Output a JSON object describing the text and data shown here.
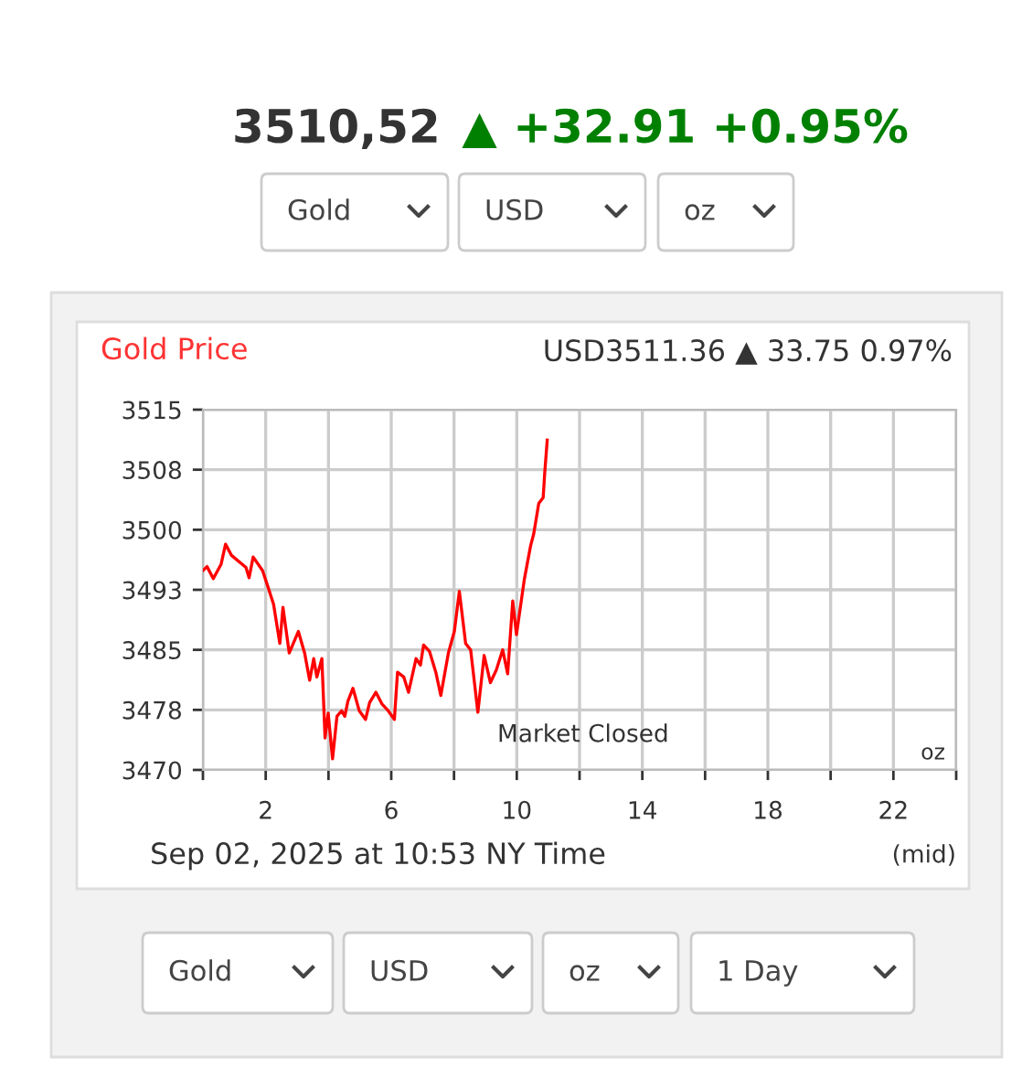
{
  "chart_data": {
    "type": "line",
    "title": "Gold Price",
    "subtitle": "USD3511.36 ▲ 33.75 0.97%",
    "annotations": [
      "3510,52",
      "▲ +32.91 +0.95%",
      "Gold",
      "USD",
      "oz",
      "Market Closed",
      "oz",
      "Sep 02, 2025 at 10:53 NY Time",
      "(mid)",
      "Gold",
      "USD",
      "oz",
      "1 Day"
    ],
    "x": [
      0.0,
      0.13,
      0.33,
      0.58,
      0.72,
      0.91,
      1.37,
      1.47,
      1.6,
      1.9,
      2.06,
      2.25,
      2.45,
      2.55,
      2.75,
      3.04,
      3.24,
      3.4,
      3.53,
      3.63,
      3.79,
      3.89,
      3.99,
      4.13,
      4.27,
      4.42,
      4.52,
      4.62,
      4.78,
      4.98,
      5.18,
      5.31,
      5.51,
      5.71,
      5.9,
      6.1,
      6.2,
      6.4,
      6.55,
      6.79,
      6.93,
      7.03,
      7.22,
      7.42,
      7.58,
      7.82,
      8.01,
      8.17,
      8.37,
      8.53,
      8.76,
      8.96,
      9.16,
      9.35,
      9.55,
      9.71,
      9.87,
      9.99,
      10.24,
      10.44,
      10.54,
      10.7,
      10.84,
      10.89,
      10.97
    ],
    "series": [
      {
        "color": "#ff0000",
        "values": [
          3494.9,
          3495.4,
          3493.9,
          3495.7,
          3498.2,
          3496.8,
          3495.3,
          3494.0,
          3496.6,
          3494.9,
          3493.0,
          3490.7,
          3485.8,
          3490.3,
          3484.6,
          3487.3,
          3484.6,
          3481.2,
          3483.9,
          3481.6,
          3483.9,
          3474.0,
          3477.1,
          3471.4,
          3476.7,
          3477.4,
          3476.7,
          3478.6,
          3480.2,
          3477.4,
          3476.3,
          3478.4,
          3479.7,
          3478.2,
          3477.4,
          3476.3,
          3482.2,
          3481.6,
          3479.7,
          3483.9,
          3483.1,
          3485.6,
          3484.8,
          3482.2,
          3479.3,
          3484.6,
          3487.3,
          3492.3,
          3485.8,
          3485.0,
          3477.2,
          3484.3,
          3480.9,
          3482.5,
          3485.0,
          3482.0,
          3491.1,
          3486.9,
          3493.8,
          3498.0,
          3499.5,
          3503.3,
          3504.0,
          3507.1,
          3511.2
        ]
      }
    ],
    "xlim": [
      0,
      24
    ],
    "xticks": [
      {
        "value": 0,
        "label": null
      },
      2,
      {
        "value": 4,
        "label": null
      },
      6,
      {
        "value": 8,
        "label": null
      },
      10,
      {
        "value": 12,
        "label": null
      },
      14,
      {
        "value": 16,
        "label": null
      },
      18,
      {
        "value": 20,
        "label": null
      },
      22,
      {
        "value": 24,
        "label": null
      }
    ],
    "ylim": [
      3470,
      3515
    ],
    "yticks": [
      3470,
      {
        "value": 3477.5,
        "label": "3478"
      },
      3485,
      {
        "value": 3492.5,
        "label": "3493"
      },
      3500,
      {
        "value": 3507.5,
        "label": "3508"
      },
      3515
    ],
    "grid": true,
    "marker": "none",
    "line_style": "solid"
  }
}
